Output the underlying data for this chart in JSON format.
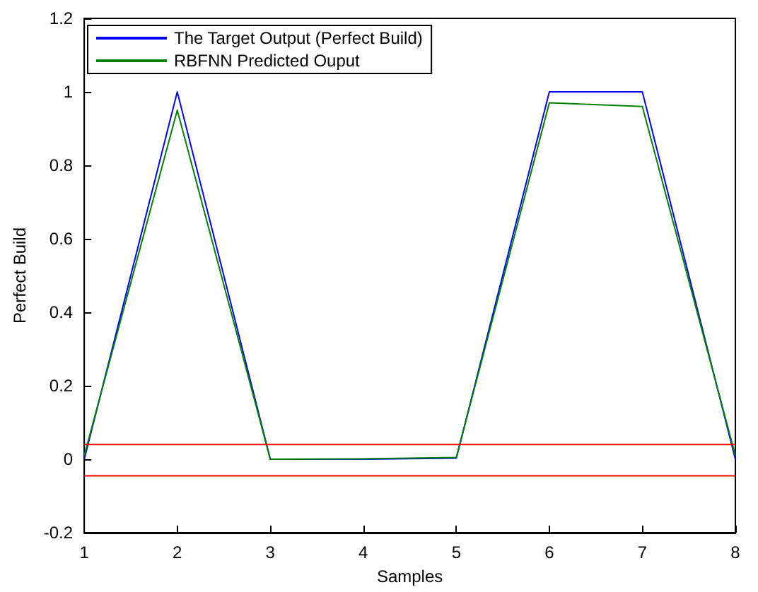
{
  "chart_data": {
    "type": "line",
    "xlabel": "Samples",
    "ylabel": "Perfect Build",
    "x": [
      1,
      2,
      3,
      4,
      5,
      6,
      7,
      8
    ],
    "series": [
      {
        "name": "The Target Output (Perfect Build)",
        "color": "#0000ff",
        "values": [
          0,
          1,
          0,
          0,
          0.003,
          1,
          1,
          0
        ]
      },
      {
        "name": "RBFNN Predicted Ouput",
        "color": "#008000",
        "values": [
          0.01,
          0.95,
          0,
          0.001,
          0.005,
          0.97,
          0.96,
          0.01
        ]
      }
    ],
    "xlim": [
      1,
      8
    ],
    "xticks": [
      1,
      2,
      3,
      4,
      5,
      6,
      7,
      8
    ],
    "ylim": [
      -0.2,
      1.2
    ],
    "yticks": [
      -0.2,
      0,
      0.2,
      0.4,
      0.6,
      0.8,
      1,
      1.2
    ],
    "ref_lines": [
      {
        "axis": "y",
        "value": 0.04,
        "color": "#ff0000"
      },
      {
        "axis": "y",
        "value": -0.045,
        "color": "#ff0000"
      }
    ],
    "grid": false,
    "legend": "top left",
    "marker": "none",
    "line_style": "solid"
  }
}
